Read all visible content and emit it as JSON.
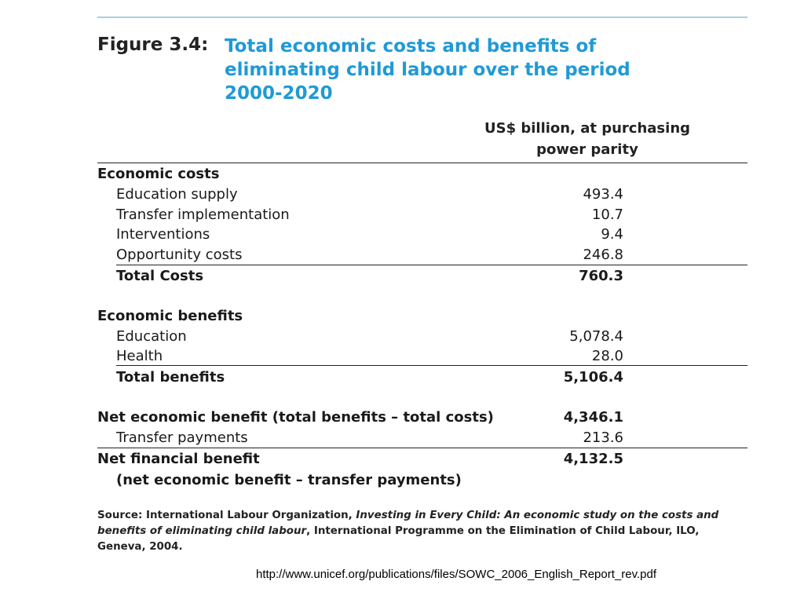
{
  "figure": {
    "label": "Figure 3.4:",
    "title_lines": [
      "Total economic costs and benefits of",
      "eliminating child labour over the period",
      "2000-2020"
    ]
  },
  "table": {
    "unit_header_lines": [
      "US$ billion, at purchasing",
      "power parity"
    ],
    "rows": [
      {
        "label": "Economic costs",
        "value": ""
      },
      {
        "label": "Education supply",
        "value": "493.4"
      },
      {
        "label": "Transfer implementation",
        "value": "10.7"
      },
      {
        "label": "Interventions",
        "value": "9.4"
      },
      {
        "label": "Opportunity costs",
        "value": "246.8"
      },
      {
        "label": "Total Costs",
        "value": "760.3"
      },
      {
        "label": "Economic benefits",
        "value": ""
      },
      {
        "label": "Education",
        "value": "5,078.4"
      },
      {
        "label": "Health",
        "value": "28.0"
      },
      {
        "label": "Total benefits",
        "value": "5,106.4"
      },
      {
        "label": "Net economic benefit (total benefits – total costs)",
        "value": "4,346.1"
      },
      {
        "label": "Transfer payments",
        "value": "213.6"
      },
      {
        "label": "Net financial benefit",
        "value": "4,132.5"
      },
      {
        "label": "(net economic benefit – transfer payments)",
        "value": ""
      }
    ]
  },
  "source": {
    "prefix": "Source: International Labour Organization, ",
    "italic": "Investing in Every Child: An economic study on the costs and benefits of eliminating child labour",
    "suffix": ", International Programme on the Elimination of Child Labour, ILO, Geneva, 2004."
  },
  "footer_url": "http://www.unicef.org/publications/files/SOWC_2006_English_Report_rev.pdf"
}
